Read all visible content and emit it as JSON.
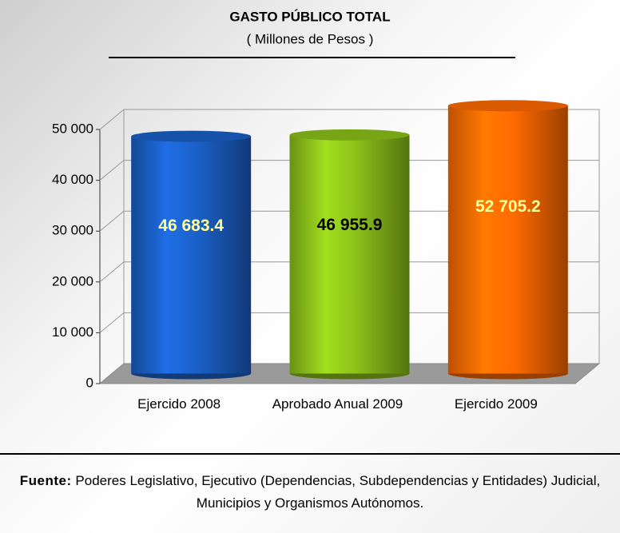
{
  "chart_data": {
    "type": "bar3d",
    "title": "GASTO PÚBLICO TOTAL",
    "subtitle": "( Millones de Pesos )",
    "categories": [
      "Ejercido 2008",
      "Aprobado Anual 2009",
      "Ejercido 2009"
    ],
    "values": [
      46683.4,
      46955.9,
      52705.2
    ],
    "value_labels": [
      "46 683.4",
      "46 955.9",
      "52 705.2"
    ],
    "colors": [
      "#1b60c8",
      "#8cc21a",
      "#ff6a00"
    ],
    "value_label_colors": [
      "#ffff99",
      "#000000",
      "#ffff99"
    ],
    "ylim": [
      0,
      50000
    ],
    "yticks": [
      {
        "value": 0,
        "label": "0"
      },
      {
        "value": 10000,
        "label": "10 000"
      },
      {
        "value": 20000,
        "label": "20 000"
      },
      {
        "value": 30000,
        "label": "30 000"
      },
      {
        "value": 40000,
        "label": "40 000"
      },
      {
        "value": 50000,
        "label": "50 000"
      }
    ],
    "grid": true
  },
  "footer": {
    "label": "Fuente:",
    "text": "Poderes Legislativo, Ejecutivo (Dependencias, Subdependencias y Entidades)  Judicial, Municipios y Organismos Autónomos."
  }
}
